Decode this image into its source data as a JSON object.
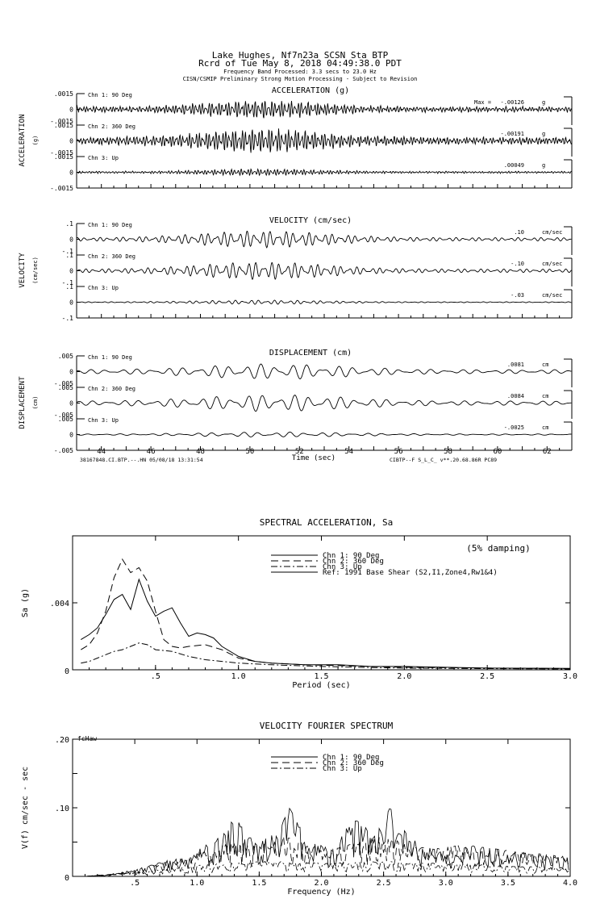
{
  "header": {
    "line1": "Lake Hughes, Nf7n23a    SCSN Sta BTP",
    "line2": "Rcrd of Tue May  8, 2018 04:49:38.0 PDT",
    "line3": "Frequency Band Processed: 3.3 secs to 23.0 Hz",
    "line4": "CISN/CSMIP Preliminary Strong Motion Processing - Subject to Revision"
  },
  "time_axis": {
    "xlabel": "Time (sec)",
    "range": [
      43,
      63
    ],
    "ticks": [
      "44",
      "46",
      "48",
      "50",
      "52",
      "54",
      "56",
      "58",
      "60",
      "62"
    ],
    "footer_left": "38167848.CI.BTP.--.HN 05/08/18 13:31:54",
    "footer_right": "CIBTP--F  S_L_C_  v**.20.68.86R PC89"
  },
  "chart_data": [
    {
      "type": "line",
      "title": "ACCELERATION (g)",
      "ylabel": "ACCELERATION",
      "yunit": "(g)",
      "x_range": [
        43,
        63
      ],
      "max_label": "Max =",
      "channels": [
        {
          "name": "Chn 1: 90 Deg",
          "ylim": [
            -0.0015,
            0.0015
          ],
          "ytick_top": ".0015",
          "ytick_mid": "0",
          "ytick_bot": "-.0015",
          "peak": "-.00126",
          "unit": "g"
        },
        {
          "name": "Chn 2: 360 Deg",
          "ylim": [
            -0.0015,
            0.0015
          ],
          "ytick_top": ".0015",
          "ytick_mid": "0",
          "ytick_bot": "-.0015",
          "peak": "-.00191",
          "unit": "g"
        },
        {
          "name": "Chn 3: Up",
          "ylim": [
            -0.0015,
            0.0015
          ],
          "ytick_top": ".0015",
          "ytick_mid": "0",
          "ytick_bot": "-.0015",
          "peak": ".00049",
          "unit": "g"
        }
      ]
    },
    {
      "type": "line",
      "title": "VELOCITY (cm/sec)",
      "ylabel": "VELOCITY",
      "yunit": "(cm/sec)",
      "x_range": [
        43,
        63
      ],
      "channels": [
        {
          "name": "Chn 1: 90 Deg",
          "ylim": [
            -0.1,
            0.1
          ],
          "ytick_top": ".1",
          "ytick_mid": "0",
          "ytick_bot": "-.1",
          "peak": ".10",
          "unit": "cm/sec"
        },
        {
          "name": "Chn 2: 360 Deg",
          "ylim": [
            -0.1,
            0.1
          ],
          "ytick_top": ".1",
          "ytick_mid": "0",
          "ytick_bot": "-.1",
          "peak": "-.10",
          "unit": "cm/sec"
        },
        {
          "name": "Chn 3: Up",
          "ylim": [
            -0.1,
            0.1
          ],
          "ytick_top": ".1",
          "ytick_mid": "0",
          "ytick_bot": "-.1",
          "peak": "-.03",
          "unit": "cm/sec"
        }
      ]
    },
    {
      "type": "line",
      "title": "DISPLACEMENT (cm)",
      "ylabel": "DISPLACEMENT",
      "yunit": "(cm)",
      "x_range": [
        43,
        63
      ],
      "channels": [
        {
          "name": "Chn 1: 90 Deg",
          "ylim": [
            -0.005,
            0.005
          ],
          "ytick_top": ".005",
          "ytick_mid": "0",
          "ytick_bot": "-.005",
          "peak": ".0081",
          "unit": "cm"
        },
        {
          "name": "Chn 2: 360 Deg",
          "ylim": [
            -0.005,
            0.005
          ],
          "ytick_top": ".005",
          "ytick_mid": "0",
          "ytick_bot": "-.005",
          "peak": ".0084",
          "unit": "cm"
        },
        {
          "name": "Chn 3: Up",
          "ylim": [
            -0.005,
            0.005
          ],
          "ytick_top": ".005",
          "ytick_mid": "0",
          "ytick_bot": "-.005",
          "peak": "-.0025",
          "unit": "cm"
        }
      ]
    },
    {
      "type": "line",
      "title": "SPECTRAL ACCELERATION, Sa",
      "xlabel": "Period (sec)",
      "ylabel": "Sa (g)",
      "annotation": "(5% damping)",
      "xlim": [
        0,
        3.0
      ],
      "ylim": [
        0,
        0.008
      ],
      "xticks": [
        {
          "v": 0.5,
          "label": ".5"
        },
        {
          "v": 1.0,
          "label": "1.0"
        },
        {
          "v": 1.5,
          "label": "1.5"
        },
        {
          "v": 2.0,
          "label": "2.0"
        },
        {
          "v": 2.5,
          "label": "2.5"
        },
        {
          "v": 3.0,
          "label": "3.0"
        }
      ],
      "yticks": [
        {
          "v": 0,
          "label": "0"
        },
        {
          "v": 0.004,
          "label": ".004"
        }
      ],
      "series": [
        {
          "name": "Chn 1: 90 Deg",
          "dash": "",
          "points": [
            [
              0.05,
              0.0018
            ],
            [
              0.1,
              0.0021
            ],
            [
              0.15,
              0.0025
            ],
            [
              0.2,
              0.0033
            ],
            [
              0.25,
              0.0042
            ],
            [
              0.3,
              0.0045
            ],
            [
              0.35,
              0.0036
            ],
            [
              0.4,
              0.0054
            ],
            [
              0.45,
              0.0041
            ],
            [
              0.5,
              0.0032
            ],
            [
              0.55,
              0.0035
            ],
            [
              0.6,
              0.0037
            ],
            [
              0.65,
              0.0028
            ],
            [
              0.7,
              0.002
            ],
            [
              0.75,
              0.0022
            ],
            [
              0.8,
              0.0021
            ],
            [
              0.85,
              0.0019
            ],
            [
              0.9,
              0.0014
            ],
            [
              1.0,
              0.0008
            ],
            [
              1.1,
              0.0005
            ],
            [
              1.2,
              0.0004
            ],
            [
              1.4,
              0.0003
            ],
            [
              1.6,
              0.0003
            ],
            [
              1.8,
              0.0002
            ],
            [
              2.0,
              0.0002
            ],
            [
              2.5,
              0.0001
            ],
            [
              3.0,
              8e-05
            ]
          ]
        },
        {
          "name": "Chn 2: 360 Deg",
          "dash": "9,5",
          "points": [
            [
              0.05,
              0.0012
            ],
            [
              0.1,
              0.0015
            ],
            [
              0.15,
              0.0022
            ],
            [
              0.2,
              0.0035
            ],
            [
              0.25,
              0.0055
            ],
            [
              0.3,
              0.0066
            ],
            [
              0.35,
              0.0058
            ],
            [
              0.4,
              0.0061
            ],
            [
              0.45,
              0.0053
            ],
            [
              0.5,
              0.0035
            ],
            [
              0.55,
              0.0018
            ],
            [
              0.6,
              0.0014
            ],
            [
              0.65,
              0.0013
            ],
            [
              0.7,
              0.0014
            ],
            [
              0.8,
              0.0015
            ],
            [
              0.9,
              0.0012
            ],
            [
              1.0,
              0.0007
            ],
            [
              1.1,
              0.0005
            ],
            [
              1.2,
              0.0004
            ],
            [
              1.4,
              0.0003
            ],
            [
              1.6,
              0.00025
            ],
            [
              2.0,
              0.00015
            ],
            [
              2.5,
              0.0001
            ],
            [
              3.0,
              7e-05
            ]
          ]
        },
        {
          "name": "Chn 3: Up",
          "dash": "8,3,2,3",
          "points": [
            [
              0.05,
              0.0004
            ],
            [
              0.1,
              0.0005
            ],
            [
              0.15,
              0.0007
            ],
            [
              0.2,
              0.0009
            ],
            [
              0.25,
              0.0011
            ],
            [
              0.3,
              0.0012
            ],
            [
              0.35,
              0.0014
            ],
            [
              0.4,
              0.0016
            ],
            [
              0.45,
              0.0015
            ],
            [
              0.5,
              0.0012
            ],
            [
              0.6,
              0.0011
            ],
            [
              0.7,
              0.0008
            ],
            [
              0.8,
              0.0006
            ],
            [
              0.9,
              0.0005
            ],
            [
              1.0,
              0.0004
            ],
            [
              1.2,
              0.0003
            ],
            [
              1.5,
              0.0002
            ],
            [
              2.0,
              0.0001
            ],
            [
              2.5,
              7e-05
            ],
            [
              3.0,
              5e-05
            ]
          ]
        },
        {
          "name": "Ref: 1991 Base Shear (S2,I1,Zone4,Rw1&4)",
          "dash": "",
          "points": []
        }
      ]
    },
    {
      "type": "line",
      "title": "VELOCITY FOURIER SPECTRUM",
      "xlabel": "Frequency (Hz)",
      "ylabel": "V(f)  cm/sec - sec",
      "corner_label": "fcHaw",
      "xlim": [
        0,
        4.0
      ],
      "ylim": [
        0,
        0.2
      ],
      "xticks": [
        {
          "v": 0.5,
          "label": ".5"
        },
        {
          "v": 1.0,
          "label": "1.0"
        },
        {
          "v": 1.5,
          "label": "1.5"
        },
        {
          "v": 2.0,
          "label": "2.0"
        },
        {
          "v": 2.5,
          "label": "2.5"
        },
        {
          "v": 3.0,
          "label": "3.0"
        },
        {
          "v": 3.5,
          "label": "3.5"
        },
        {
          "v": 4.0,
          "label": "4.0"
        }
      ],
      "yticks": [
        {
          "v": 0,
          "label": "0"
        },
        {
          "v": 0.1,
          "label": ".10"
        },
        {
          "v": 0.2,
          "label": ".20"
        }
      ],
      "series": [
        {
          "name": "Chn 1: 90 Deg",
          "dash": "",
          "envelope": [
            [
              0.1,
              0.0
            ],
            [
              0.3,
              0.003
            ],
            [
              0.5,
              0.01
            ],
            [
              0.7,
              0.02
            ],
            [
              0.9,
              0.03
            ],
            [
              1.0,
              0.038
            ],
            [
              1.2,
              0.06
            ],
            [
              1.3,
              0.09
            ],
            [
              1.4,
              0.06
            ],
            [
              1.5,
              0.05
            ],
            [
              1.6,
              0.06
            ],
            [
              1.7,
              0.085
            ],
            [
              1.75,
              0.105
            ],
            [
              1.8,
              0.08
            ],
            [
              1.9,
              0.05
            ],
            [
              2.0,
              0.045
            ],
            [
              2.1,
              0.04
            ],
            [
              2.2,
              0.07
            ],
            [
              2.3,
              0.085
            ],
            [
              2.4,
              0.07
            ],
            [
              2.5,
              0.08
            ],
            [
              2.55,
              0.1
            ],
            [
              2.6,
              0.09
            ],
            [
              2.7,
              0.06
            ],
            [
              2.8,
              0.045
            ],
            [
              2.9,
              0.04
            ],
            [
              3.0,
              0.035
            ],
            [
              3.2,
              0.045
            ],
            [
              3.4,
              0.04
            ],
            [
              3.6,
              0.035
            ],
            [
              3.8,
              0.03
            ],
            [
              4.0,
              0.025
            ]
          ]
        },
        {
          "name": "Chn 2: 360 Deg",
          "dash": "9,5",
          "envelope": [
            [
              0.1,
              0.0
            ],
            [
              0.3,
              0.003
            ],
            [
              0.5,
              0.009
            ],
            [
              0.7,
              0.018
            ],
            [
              0.9,
              0.028
            ],
            [
              1.1,
              0.04
            ],
            [
              1.3,
              0.05
            ],
            [
              1.5,
              0.045
            ],
            [
              1.7,
              0.06
            ],
            [
              1.9,
              0.045
            ],
            [
              2.1,
              0.04
            ],
            [
              2.3,
              0.05
            ],
            [
              2.5,
              0.06
            ],
            [
              2.7,
              0.045
            ],
            [
              2.9,
              0.04
            ],
            [
              3.1,
              0.045
            ],
            [
              3.3,
              0.04
            ],
            [
              3.5,
              0.038
            ],
            [
              3.7,
              0.034
            ],
            [
              4.0,
              0.028
            ]
          ]
        },
        {
          "name": "Chn 3: Up",
          "dash": "8,3,2,3",
          "envelope": [
            [
              0.1,
              0.0
            ],
            [
              0.5,
              0.006
            ],
            [
              0.8,
              0.012
            ],
            [
              1.0,
              0.016
            ],
            [
              1.3,
              0.02
            ],
            [
              1.6,
              0.022
            ],
            [
              1.9,
              0.02
            ],
            [
              2.2,
              0.02
            ],
            [
              2.5,
              0.022
            ],
            [
              2.8,
              0.02
            ],
            [
              3.1,
              0.018
            ],
            [
              3.4,
              0.016
            ],
            [
              3.7,
              0.014
            ],
            [
              4.0,
              0.012
            ]
          ]
        }
      ]
    }
  ]
}
